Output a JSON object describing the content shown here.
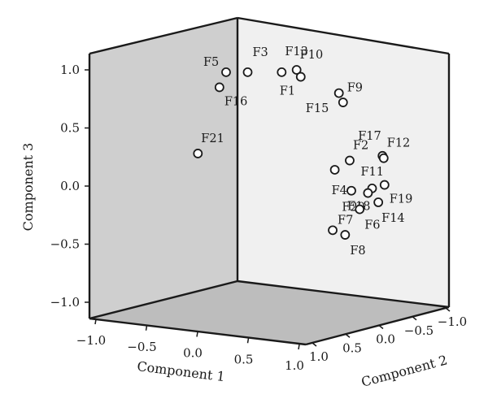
{
  "chart_data": {
    "type": "scatter",
    "projection": "3d",
    "xlabel": "Component 1",
    "ylabel": "Component 2",
    "zlabel": "Component 3",
    "x_ticks": [
      "−1.0",
      "−0.5",
      "0.0",
      "0.5",
      "1.0"
    ],
    "y_ticks": [
      "1.0",
      "0.5",
      "0.0",
      "−0.5",
      "−1.0"
    ],
    "z_ticks": [
      "1.0",
      "0.5",
      "0.0",
      "−0.5",
      "−1.0"
    ],
    "points": [
      {
        "label": "F5",
        "screen": [
          0.98,
          0.98
        ]
      },
      {
        "label": "F3",
        "screen": [
          1.5,
          0.98
        ]
      },
      {
        "label": "F13",
        "screen": [
          2.32,
          0.98
        ]
      },
      {
        "label": "F10",
        "screen": [
          2.68,
          1.0
        ]
      },
      {
        "label": "F1",
        "screen": [
          2.78,
          0.94
        ]
      },
      {
        "label": "F16",
        "screen": [
          0.82,
          0.85
        ]
      },
      {
        "label": "F9",
        "screen": [
          3.7,
          0.8
        ]
      },
      {
        "label": "F15",
        "screen": [
          3.8,
          0.72
        ]
      },
      {
        "label": "F21",
        "screen": [
          0.3,
          0.28
        ]
      },
      {
        "label": "F17",
        "screen": [
          4.75,
          0.26
        ]
      },
      {
        "label": "F12",
        "screen": [
          4.78,
          0.24
        ]
      },
      {
        "label": "F2",
        "screen": [
          3.96,
          0.22
        ]
      },
      {
        "label": "F4",
        "screen": [
          3.6,
          0.14
        ]
      },
      {
        "label": "F11",
        "screen": [
          4.5,
          -0.02
        ]
      },
      {
        "label": "F19",
        "screen": [
          4.8,
          0.01
        ]
      },
      {
        "label": "F18",
        "screen": [
          4.0,
          -0.04
        ]
      },
      {
        "label": "F20",
        "screen": [
          4.4,
          -0.06
        ]
      },
      {
        "label": "F6",
        "screen": [
          4.2,
          -0.2
        ]
      },
      {
        "label": "F14",
        "screen": [
          4.65,
          -0.14
        ]
      },
      {
        "label": "F7",
        "screen": [
          3.55,
          -0.38
        ]
      },
      {
        "label": "F8",
        "screen": [
          3.85,
          -0.42
        ]
      }
    ]
  }
}
